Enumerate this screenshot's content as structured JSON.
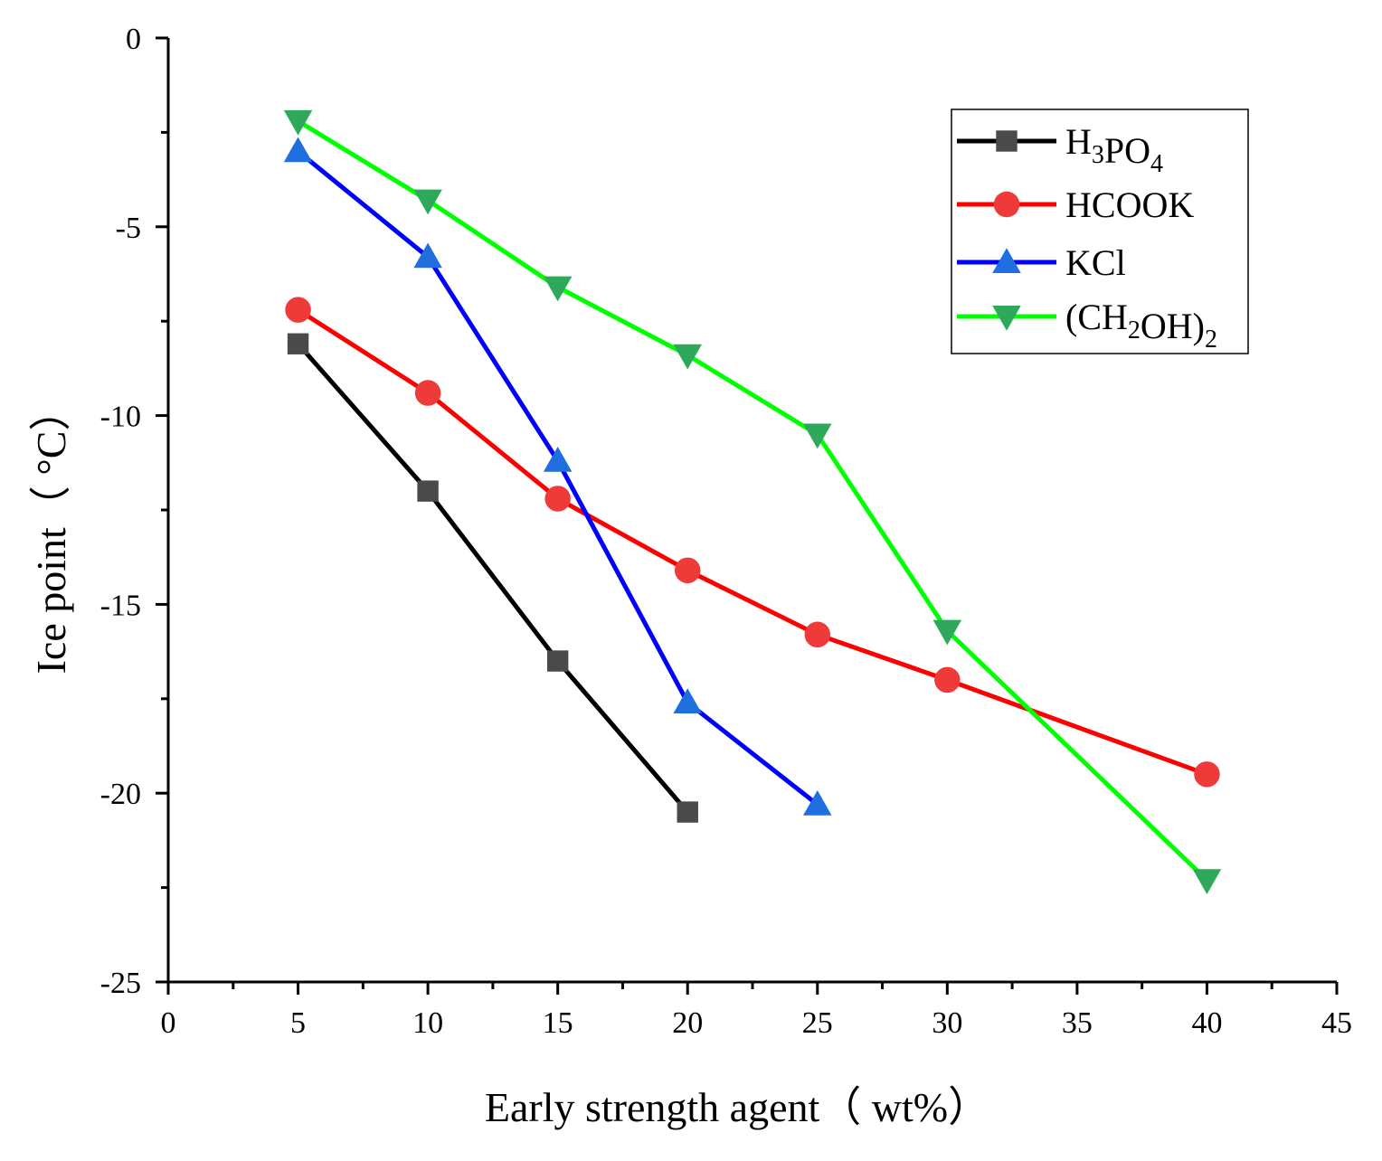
{
  "chart_data": {
    "type": "line",
    "title": "",
    "xlabel": "Early strength agent（ wt%）",
    "ylabel": "Ice point（ °C）",
    "xlim": [
      0,
      45
    ],
    "ylim": [
      -25,
      0
    ],
    "xticks": [
      0,
      5,
      10,
      15,
      20,
      25,
      30,
      35,
      40,
      45
    ],
    "yticks": [
      0,
      -5,
      -10,
      -15,
      -20,
      -25
    ],
    "grid": false,
    "legend_position": "top-right",
    "series": [
      {
        "name": "H3PO4",
        "label_parts": [
          [
            "H",
            ""
          ],
          [
            "3",
            "sub"
          ],
          [
            "PO",
            ""
          ],
          [
            "4",
            "sub"
          ]
        ],
        "color": "#000000",
        "marker_color": "#4a4a4a",
        "marker": "square",
        "x": [
          5,
          10,
          15,
          20
        ],
        "y": [
          -8.1,
          -12.0,
          -16.5,
          -20.5
        ]
      },
      {
        "name": "HCOOK",
        "label_parts": [
          [
            "HCOOK",
            ""
          ]
        ],
        "color": "#ff0000",
        "marker_color": "#ef3a3a",
        "marker": "circle",
        "x": [
          5,
          10,
          15,
          20,
          25,
          30,
          40
        ],
        "y": [
          -7.2,
          -9.4,
          -12.2,
          -14.1,
          -15.8,
          -17.0,
          -19.5
        ]
      },
      {
        "name": "KCl",
        "label_parts": [
          [
            "KCl",
            ""
          ]
        ],
        "color": "#0000ff",
        "marker_color": "#1f6fe0",
        "marker": "triangle-up",
        "x": [
          5,
          10,
          15,
          20,
          25
        ],
        "y": [
          -3.0,
          -5.8,
          -11.2,
          -17.6,
          -20.3
        ]
      },
      {
        "name": "(CH2OH)2",
        "label_parts": [
          [
            "(CH",
            ""
          ],
          [
            "2",
            "sub"
          ],
          [
            "OH)",
            ""
          ],
          [
            "2",
            "sub"
          ]
        ],
        "color": "#00ff00",
        "marker_color": "#2ea85a",
        "marker": "triangle-down",
        "x": [
          5,
          10,
          15,
          20,
          25,
          30,
          40
        ],
        "y": [
          -2.2,
          -4.3,
          -6.6,
          -8.4,
          -10.5,
          -15.7,
          -22.3
        ]
      }
    ]
  }
}
